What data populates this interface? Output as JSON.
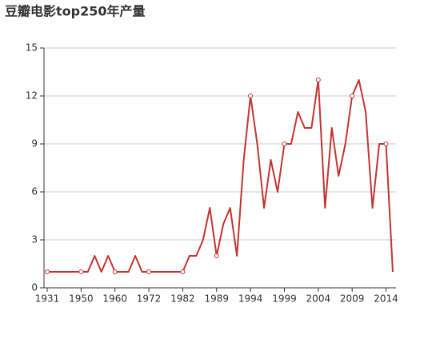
{
  "chart_data": {
    "type": "line",
    "title": "豆瓣电影top250年产量",
    "categories": [
      "1931",
      null,
      null,
      null,
      null,
      "1950",
      null,
      null,
      null,
      null,
      "1960",
      null,
      null,
      null,
      null,
      "1972",
      null,
      null,
      null,
      null,
      "1982",
      null,
      null,
      null,
      null,
      "1989",
      null,
      null,
      null,
      null,
      "1994",
      null,
      null,
      null,
      null,
      "1999",
      null,
      null,
      null,
      null,
      "2004",
      null,
      null,
      null,
      null,
      "2009",
      null,
      null,
      null,
      null,
      "2014",
      null
    ],
    "series": [
      {
        "name": "产量",
        "color": "#c23531",
        "values": [
          1,
          1,
          1,
          1,
          1,
          1,
          1,
          2,
          1,
          2,
          1,
          1,
          1,
          2,
          1,
          1,
          1,
          1,
          1,
          1,
          1,
          2,
          2,
          3,
          5,
          2,
          4,
          5,
          2,
          8,
          12,
          9,
          5,
          8,
          6,
          9,
          9,
          11,
          10,
          10,
          13,
          5,
          10,
          7,
          9,
          12,
          13,
          11,
          5,
          9,
          9,
          1
        ]
      }
    ],
    "ylim": [
      0,
      15
    ],
    "yticks": [
      0,
      3,
      6,
      9,
      12,
      15
    ],
    "grid": true
  }
}
